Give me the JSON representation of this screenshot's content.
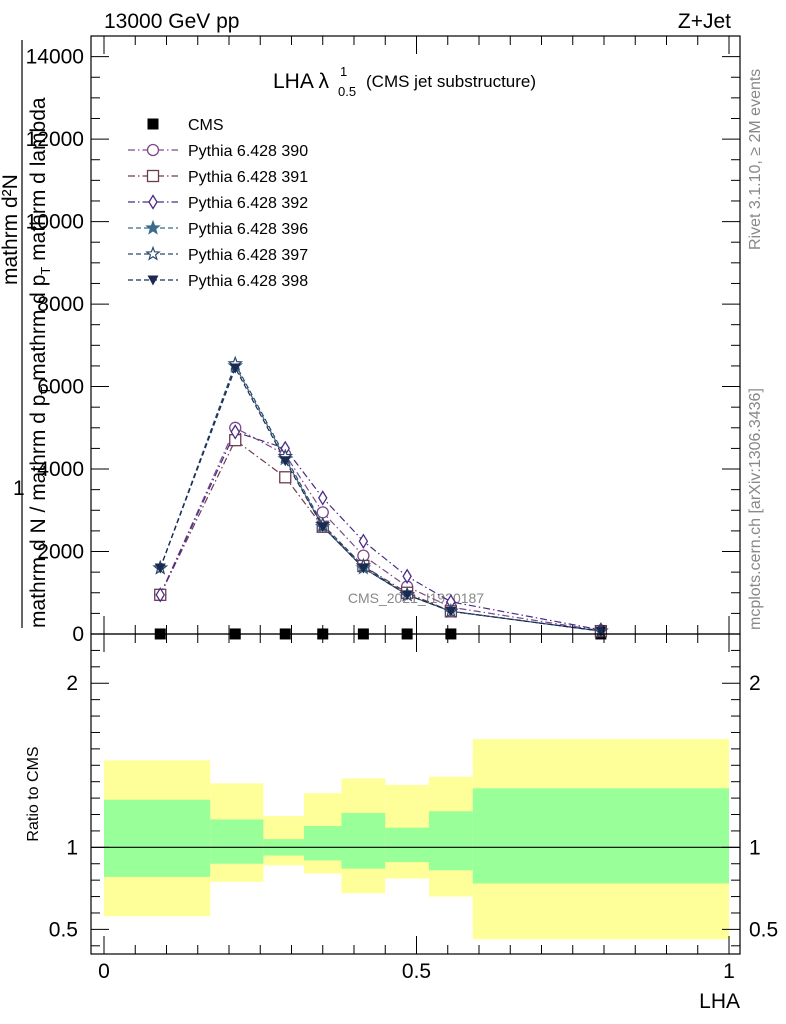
{
  "header": {
    "energy_label": "13000 GeV pp",
    "process_label": "Z+Jet"
  },
  "side_labels": {
    "rivet": "Rivet 3.1.10, ≥ 2M events",
    "mcplots": "mcplots.cern.ch [arXiv:1306.3436]"
  },
  "watermark": "CMS_2021_I1920187",
  "colors": {
    "band_outer": "#ffff99",
    "band_inner": "#99ff99",
    "cms": "#000000",
    "p390": "#7b4a8a",
    "p391": "#6e3a52",
    "p392": "#4b2b86",
    "p396": "#3b6a8a",
    "p397": "#2a4a6e",
    "p398": "#1a2a50"
  },
  "chart_data": [
    {
      "type": "line",
      "title": "LHA λ",
      "title_super": "1",
      "title_sub": "0.5",
      "title_suffix": "(CMS jet substructure)",
      "xlabel": "LHA",
      "ylabel_top": "1",
      "ylabel_num": "mathrm d²N",
      "ylabel_den": "mathrm d N / mathrm d p",
      "ylabel_den_sub": "T",
      "ylabel_den_tail": " mathrm d p",
      "ylabel_den_sub2": "T",
      "ylabel_den_end": " mathrm d lambda",
      "xlim": [
        0,
        1
      ],
      "ylim": [
        0,
        14500
      ],
      "yticks": [
        0,
        2000,
        4000,
        6000,
        8000,
        10000,
        12000,
        14000
      ],
      "ytick_labels": [
        "0",
        "2000",
        "4000",
        "6000",
        "8000",
        "10000",
        "12000",
        "14000"
      ],
      "x": [
        0.09,
        0.21,
        0.29,
        0.35,
        0.415,
        0.485,
        0.555,
        0.795
      ],
      "series": [
        {
          "name": "CMS",
          "marker": "square-filled",
          "line": "none",
          "color": "#000000",
          "values": [
            1,
            1,
            1,
            1,
            1,
            1,
            1,
            1
          ]
        },
        {
          "name": "Pythia 6.428 390",
          "marker": "circle-open",
          "line": "dashdot",
          "color": "#7b4a8a",
          "values": [
            950,
            5000,
            4350,
            2950,
            1900,
            1150,
            650,
            80
          ]
        },
        {
          "name": "Pythia 6.428 391",
          "marker": "square-open",
          "line": "dashdot",
          "color": "#6e3a52",
          "values": [
            950,
            4700,
            3800,
            2600,
            1650,
            1000,
            550,
            70
          ]
        },
        {
          "name": "Pythia 6.428 392",
          "marker": "diamond-open",
          "line": "dashdot",
          "color": "#4b2b86",
          "values": [
            950,
            4900,
            4500,
            3300,
            2250,
            1400,
            780,
            100
          ]
        },
        {
          "name": "Pythia 6.428 396",
          "marker": "star-filled",
          "line": "dashed",
          "color": "#3b6a8a",
          "values": [
            1600,
            6500,
            4250,
            2600,
            1600,
            950,
            550,
            70
          ]
        },
        {
          "name": "Pythia 6.428 397",
          "marker": "star-open",
          "line": "dashed",
          "color": "#2a4a6e",
          "values": [
            1600,
            6550,
            4300,
            2650,
            1650,
            950,
            550,
            70
          ]
        },
        {
          "name": "Pythia 6.428 398",
          "marker": "triangle-down-filled",
          "line": "dashed",
          "color": "#1a2a50",
          "values": [
            1600,
            6450,
            4200,
            2600,
            1600,
            950,
            550,
            70
          ]
        }
      ]
    },
    {
      "type": "area",
      "ylabel": "Ratio to CMS",
      "xlabel": "LHA",
      "xlim": [
        0,
        1
      ],
      "ylim": [
        0.35,
        2.3
      ],
      "yticks": [
        0.5,
        1,
        2
      ],
      "ytick_labels": [
        "0.5",
        "1",
        "2"
      ],
      "xticks": [
        0,
        0.5,
        1
      ],
      "xtick_labels": [
        "0",
        "0.5",
        "1"
      ],
      "reference_value": 1,
      "bins": [
        {
          "x0": 0.0,
          "x1": 0.17,
          "outer": [
            0.58,
            1.53
          ],
          "inner": [
            0.82,
            1.29
          ]
        },
        {
          "x0": 0.17,
          "x1": 0.255,
          "outer": [
            0.79,
            1.39
          ],
          "inner": [
            0.9,
            1.17
          ]
        },
        {
          "x0": 0.255,
          "x1": 0.32,
          "outer": [
            0.89,
            1.19
          ],
          "inner": [
            0.95,
            1.05
          ]
        },
        {
          "x0": 0.32,
          "x1": 0.38,
          "outer": [
            0.84,
            1.33
          ],
          "inner": [
            0.92,
            1.13
          ]
        },
        {
          "x0": 0.38,
          "x1": 0.45,
          "outer": [
            0.72,
            1.42
          ],
          "inner": [
            0.87,
            1.21
          ]
        },
        {
          "x0": 0.45,
          "x1": 0.52,
          "outer": [
            0.81,
            1.38
          ],
          "inner": [
            0.91,
            1.12
          ]
        },
        {
          "x0": 0.52,
          "x1": 0.59,
          "outer": [
            0.7,
            1.43
          ],
          "inner": [
            0.86,
            1.22
          ]
        },
        {
          "x0": 0.59,
          "x1": 1.0,
          "outer": [
            0.44,
            1.66
          ],
          "inner": [
            0.78,
            1.36
          ]
        }
      ]
    }
  ]
}
